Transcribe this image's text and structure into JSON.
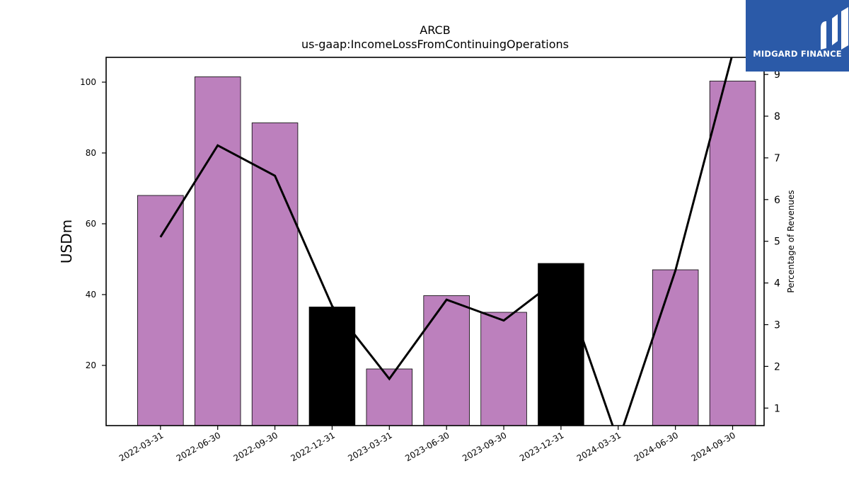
{
  "logo": {
    "text": "MIDGARD FINANCE",
    "background": "#2b5aa8"
  },
  "chart_data": {
    "type": "bar",
    "title": "ARCB",
    "subtitle": "us-gaap:IncomeLossFromContinuingOperations",
    "ylabel": "USDm",
    "y2label": "Percentage of Revenues",
    "categories": [
      "2022-03-31",
      "2022-06-30",
      "2022-09-30",
      "2022-12-31",
      "2023-03-31",
      "2023-06-30",
      "2023-09-30",
      "2023-12-31",
      "2024-03-31",
      "2024-06-30",
      "2024-09-30"
    ],
    "series": [
      {
        "kind": "bar",
        "axis": "left",
        "values": [
          68.0,
          101.5,
          88.5,
          36.5,
          19.0,
          39.7,
          35.0,
          48.8,
          0.0,
          47.0,
          100.3
        ]
      },
      {
        "kind": "line",
        "axis": "right",
        "values": [
          5.1,
          7.3,
          6.57,
          3.45,
          1.7,
          3.6,
          3.1,
          4.15,
          0.2,
          4.3,
          9.5
        ]
      }
    ],
    "highlight_categories": [
      "2022-12-31",
      "2023-12-31"
    ],
    "ylim": [
      3,
      107
    ],
    "y2lim": [
      0.58,
      9.41
    ],
    "yticks": [
      20,
      40,
      60,
      80,
      100
    ],
    "y2ticks": [
      1,
      2,
      3,
      4,
      5,
      6,
      7,
      8,
      9
    ],
    "colors": {
      "bar": "#bc80bd",
      "highlight": "#000000",
      "line": "#000000"
    },
    "grid": false
  }
}
